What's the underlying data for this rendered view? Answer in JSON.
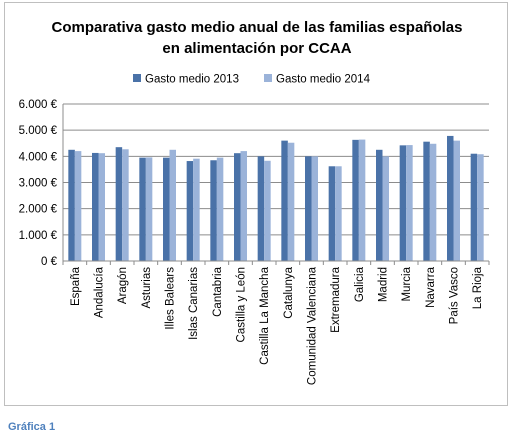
{
  "caption": "Gráfica  1",
  "colors": {
    "series_2013": "#4a72a8",
    "series_2014": "#9bb3d9",
    "grid": "#8c8c8c"
  },
  "chart_data": {
    "type": "bar",
    "title": "Comparativa gasto medio anual de las familias españolas",
    "subtitle": "en alimentación por CCAA",
    "xlabel": "",
    "ylabel": "",
    "ylim": [
      0,
      6000
    ],
    "ytick_values": [
      0,
      1000,
      2000,
      3000,
      4000,
      5000,
      6000
    ],
    "ytick_labels": [
      "0 €",
      "1.000 €",
      "2.000 €",
      "3.000 €",
      "4.000 €",
      "5.000 €",
      "6.000 €"
    ],
    "grid": true,
    "legend_position": "top-center",
    "categories": [
      "España",
      "Andalucía",
      "Aragón",
      "Asturias",
      "Illes Balears",
      "Islas Canarias",
      "Cantabria",
      "Castilla y León",
      "Castilla La Mancha",
      "Catalunya",
      "Comunidad Valenciana",
      "Extremadura",
      "Galicia",
      "Madrid",
      "Murcia",
      "Navarra",
      "País Vasco",
      "La Rioja"
    ],
    "series": [
      {
        "name": "Gasto medio 2013",
        "values": [
          4250,
          4130,
          4350,
          3950,
          3950,
          3820,
          3850,
          4120,
          4000,
          4600,
          4000,
          3620,
          4630,
          4250,
          4420,
          4560,
          4780,
          4100
        ]
      },
      {
        "name": "Gasto medio 2014",
        "values": [
          4200,
          4120,
          4270,
          3960,
          4250,
          3910,
          3950,
          4200,
          3830,
          4520,
          4000,
          3620,
          4640,
          4000,
          4430,
          4480,
          4600,
          4080
        ]
      }
    ]
  }
}
